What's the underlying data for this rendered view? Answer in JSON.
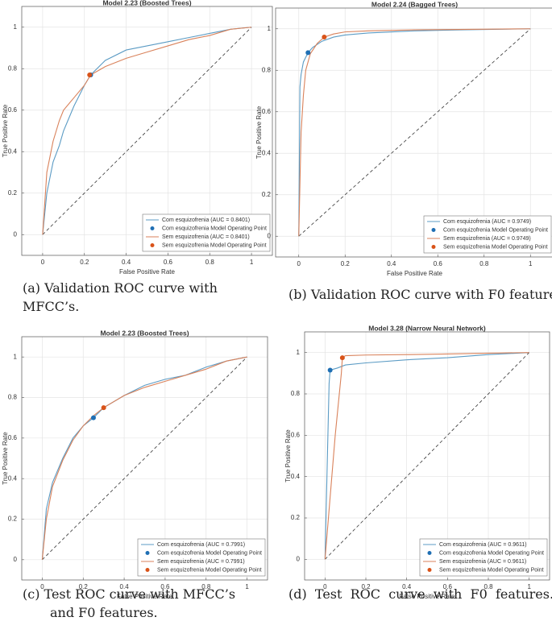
{
  "chart_data": [
    {
      "type": "line",
      "title": "Model 2.23 (Boosted Trees)",
      "xlabel": "False Positive Rate",
      "ylabel": "True Positive Rate",
      "xlim": [
        -0.1,
        1.1
      ],
      "ylim": [
        -0.1,
        1.1
      ],
      "xticks": [
        0,
        0.2,
        0.4,
        0.6,
        0.8,
        1
      ],
      "yticks": [
        0,
        0.2,
        0.4,
        0.6,
        0.8,
        1
      ],
      "grid": true,
      "legend": "lower right",
      "caption": "(a) Validation ROC curve  with MFCC’s.",
      "series": [
        {
          "name": "Com esquizofrenia (AUC = 0.8401)",
          "kind": "line",
          "color": "#5b9bc4",
          "x": [
            0,
            0.02,
            0.05,
            0.08,
            0.1,
            0.15,
            0.2,
            0.23,
            0.3,
            0.4,
            0.5,
            0.6,
            0.7,
            0.8,
            0.9,
            1
          ],
          "y": [
            0,
            0.2,
            0.35,
            0.43,
            0.5,
            0.62,
            0.72,
            0.77,
            0.84,
            0.89,
            0.91,
            0.93,
            0.95,
            0.97,
            0.99,
            1
          ]
        },
        {
          "name": "Com esquizofrenia Model Operating Point",
          "kind": "point",
          "color": "#1f6fb4",
          "x": [
            0.23
          ],
          "y": [
            0.77
          ]
        },
        {
          "name": "Sem esquizofrenia (AUC = 0.8401)",
          "kind": "line",
          "color": "#d9825b",
          "x": [
            0,
            0.02,
            0.05,
            0.08,
            0.1,
            0.15,
            0.2,
            0.23,
            0.3,
            0.4,
            0.5,
            0.6,
            0.7,
            0.8,
            0.9,
            1
          ],
          "y": [
            0,
            0.3,
            0.45,
            0.55,
            0.6,
            0.66,
            0.72,
            0.77,
            0.81,
            0.85,
            0.88,
            0.91,
            0.94,
            0.96,
            0.99,
            1
          ]
        },
        {
          "name": "Sem esquizofrenia Model Operating Point",
          "kind": "point",
          "color": "#d95319",
          "x": [
            0.225
          ],
          "y": [
            0.77
          ]
        }
      ]
    },
    {
      "type": "line",
      "title": "Model 2.24 (Bagged Trees)",
      "xlabel": "False Positive Rate",
      "ylabel": "True Positive Rate",
      "xlim": [
        -0.1,
        1.1
      ],
      "ylim": [
        -0.1,
        1.1
      ],
      "xticks": [
        0,
        0.2,
        0.4,
        0.6,
        0.8,
        1
      ],
      "yticks": [
        0,
        0.2,
        0.4,
        0.6,
        0.8,
        1
      ],
      "grid": true,
      "legend": "lower right",
      "caption": "(b) Validation ROC curve with F0 features.",
      "series": [
        {
          "name": "Com esquizofrenia (AUC = 0.9749)",
          "kind": "line",
          "color": "#5b9bc4",
          "x": [
            0,
            0.005,
            0.01,
            0.02,
            0.04,
            0.06,
            0.1,
            0.15,
            0.2,
            0.3,
            0.5,
            0.7,
            1
          ],
          "y": [
            0,
            0.72,
            0.78,
            0.84,
            0.885,
            0.91,
            0.94,
            0.96,
            0.97,
            0.98,
            0.99,
            0.995,
            1
          ]
        },
        {
          "name": "Com esquizofrenia Model Operating Point",
          "kind": "point",
          "color": "#1f6fb4",
          "x": [
            0.04
          ],
          "y": [
            0.885
          ]
        },
        {
          "name": "Sem esquizofrenia (AUC = 0.9749)",
          "kind": "line",
          "color": "#d9825b",
          "x": [
            0,
            0.01,
            0.02,
            0.03,
            0.05,
            0.08,
            0.11,
            0.15,
            0.2,
            0.3,
            0.5,
            1
          ],
          "y": [
            0,
            0.5,
            0.68,
            0.8,
            0.88,
            0.93,
            0.96,
            0.975,
            0.985,
            0.99,
            0.995,
            1
          ]
        },
        {
          "name": "Sem esquizofrenia Model Operating Point",
          "kind": "point",
          "color": "#d95319",
          "x": [
            0.11
          ],
          "y": [
            0.96
          ]
        }
      ]
    },
    {
      "type": "line",
      "title": "Model 2.23 (Boosted Trees)",
      "xlabel": "False Positive Rate",
      "ylabel": "True Positive Rate",
      "xlim": [
        -0.1,
        1.1
      ],
      "ylim": [
        -0.1,
        1.1
      ],
      "xticks": [
        0,
        0.2,
        0.4,
        0.6,
        0.8,
        1
      ],
      "yticks": [
        0,
        0.2,
        0.4,
        0.6,
        0.8,
        1
      ],
      "grid": true,
      "legend": "lower right",
      "caption": "(c) Test ROC curve  with MFCC’s and F0 features.",
      "series": [
        {
          "name": "Com esquizofrenia (AUC = 0.7991)",
          "kind": "line",
          "color": "#5b9bc4",
          "x": [
            0,
            0.02,
            0.05,
            0.1,
            0.15,
            0.2,
            0.25,
            0.3,
            0.4,
            0.5,
            0.6,
            0.7,
            0.8,
            0.9,
            1
          ],
          "y": [
            0,
            0.25,
            0.38,
            0.5,
            0.6,
            0.66,
            0.7,
            0.75,
            0.81,
            0.86,
            0.89,
            0.91,
            0.95,
            0.98,
            1
          ]
        },
        {
          "name": "Com esquizofrenia Model Operating Point",
          "kind": "point",
          "color": "#1f6fb4",
          "x": [
            0.25
          ],
          "y": [
            0.7
          ]
        },
        {
          "name": "Sem esquizofrenia (AUC = 0.7991)",
          "kind": "line",
          "color": "#d9825b",
          "x": [
            0,
            0.02,
            0.05,
            0.1,
            0.15,
            0.2,
            0.25,
            0.3,
            0.4,
            0.5,
            0.6,
            0.7,
            0.8,
            0.9,
            1
          ],
          "y": [
            0,
            0.2,
            0.36,
            0.49,
            0.59,
            0.66,
            0.71,
            0.75,
            0.81,
            0.85,
            0.88,
            0.91,
            0.94,
            0.98,
            1
          ]
        },
        {
          "name": "Sem esquizofrenia Model Operating Point",
          "kind": "point",
          "color": "#d95319",
          "x": [
            0.3
          ],
          "y": [
            0.75
          ]
        }
      ]
    },
    {
      "type": "line",
      "title": "Model 3.28 (Narrow Neural Network)",
      "xlabel": "False Positive Rate",
      "ylabel": "True Positive Rate",
      "xlim": [
        -0.1,
        1.1
      ],
      "ylim": [
        -0.1,
        1.1
      ],
      "xticks": [
        0,
        0.2,
        0.4,
        0.6,
        0.8,
        1
      ],
      "yticks": [
        0,
        0.2,
        0.4,
        0.6,
        0.8,
        1
      ],
      "grid": true,
      "legend": "lower right",
      "caption": "(d)  Test  ROC  curve  with  F0  features.",
      "series": [
        {
          "name": "Com esquizofrenia (AUC = 0.9611)",
          "kind": "line",
          "color": "#5b9bc4",
          "x": [
            0,
            0.02,
            0.025,
            0.06,
            0.1,
            0.2,
            0.4,
            0.6,
            0.8,
            1
          ],
          "y": [
            0,
            0.85,
            0.915,
            0.925,
            0.94,
            0.95,
            0.965,
            0.975,
            0.99,
            1
          ]
        },
        {
          "name": "Com esquizofrenia Model Operating Point",
          "kind": "point",
          "color": "#1f6fb4",
          "x": [
            0.025
          ],
          "y": [
            0.915
          ]
        },
        {
          "name": "Sem esquizofrenia (AUC = 0.9611)",
          "kind": "line",
          "color": "#d9825b",
          "x": [
            0,
            0.05,
            0.08,
            0.085,
            0.1,
            0.2,
            0.4,
            0.6,
            0.8,
            1
          ],
          "y": [
            0,
            0.6,
            0.9,
            0.975,
            0.985,
            0.988,
            0.99,
            0.993,
            0.997,
            1
          ]
        },
        {
          "name": "Sem esquizofrenia Model Operating Point",
          "kind": "point",
          "color": "#d95319",
          "x": [
            0.085
          ],
          "y": [
            0.975
          ]
        }
      ]
    }
  ]
}
